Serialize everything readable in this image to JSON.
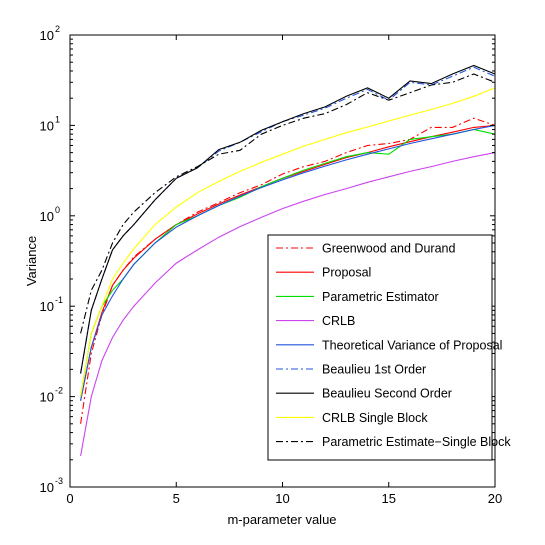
{
  "chart_data": {
    "type": "line",
    "xlabel": "m-parameter value",
    "ylabel": "Variance",
    "xlim": [
      0,
      20
    ],
    "ylim": [
      0.001,
      100
    ],
    "yscale": "log",
    "grid": false,
    "legend_position": "bottom-right",
    "x_ticks": [
      {
        "value": 0,
        "label": "0"
      },
      {
        "value": 5,
        "label": "5"
      },
      {
        "value": 10,
        "label": "10"
      },
      {
        "value": 15,
        "label": "15"
      },
      {
        "value": 20,
        "label": "20"
      }
    ],
    "y_ticks": [
      {
        "value": 0.001,
        "label": "10",
        "exp": "-3"
      },
      {
        "value": 0.01,
        "label": "10",
        "exp": "-2"
      },
      {
        "value": 0.1,
        "label": "10",
        "exp": "-1"
      },
      {
        "value": 1,
        "label": "10",
        "exp": "0"
      },
      {
        "value": 10,
        "label": "10",
        "exp": "1"
      },
      {
        "value": 100,
        "label": "10",
        "exp": "2"
      }
    ],
    "x": [
      0.5,
      1,
      1.5,
      2,
      2.5,
      3,
      4,
      5,
      6,
      7,
      8,
      9,
      10,
      11,
      12,
      13,
      14,
      15,
      16,
      17,
      18,
      19,
      20
    ],
    "series": [
      {
        "name": "Greenwood and Durand",
        "color": "#ff0000",
        "dash": "dashdot",
        "values": [
          0.005,
          0.03,
          0.08,
          0.17,
          0.25,
          0.35,
          0.55,
          0.8,
          1.1,
          1.4,
          1.8,
          2.2,
          2.9,
          3.5,
          4.0,
          5.0,
          6.0,
          6.3,
          7.0,
          9.5,
          9.5,
          12.0,
          10.0
        ]
      },
      {
        "name": "Proposal",
        "color": "#ff0000",
        "dash": "solid",
        "values": [
          0.009,
          0.035,
          0.085,
          0.17,
          0.25,
          0.34,
          0.55,
          0.8,
          1.05,
          1.35,
          1.7,
          2.1,
          2.6,
          3.1,
          3.7,
          4.4,
          5.0,
          5.8,
          6.6,
          7.5,
          8.4,
          9.5,
          10.0
        ]
      },
      {
        "name": "Parametric Estimator",
        "color": "#00dd00",
        "dash": "solid",
        "values": [
          0.01,
          0.05,
          0.1,
          0.15,
          0.2,
          0.29,
          0.5,
          0.8,
          1.0,
          1.3,
          1.6,
          2.1,
          2.6,
          3.2,
          3.8,
          4.5,
          5.0,
          4.8,
          7.0,
          7.5,
          8.0,
          9.0,
          8.0
        ]
      },
      {
        "name": "CRLB",
        "color": "#cc44ee",
        "dash": "solid",
        "values": [
          0.0022,
          0.01,
          0.025,
          0.045,
          0.07,
          0.1,
          0.18,
          0.3,
          0.42,
          0.58,
          0.76,
          0.96,
          1.2,
          1.45,
          1.72,
          2.0,
          2.35,
          2.7,
          3.1,
          3.5,
          4.0,
          4.5,
          5.0
        ]
      },
      {
        "name": "Theoretical Variance of Proposal",
        "color": "#2255dd",
        "dash": "solid",
        "values": [
          0.009,
          0.035,
          0.08,
          0.13,
          0.2,
          0.29,
          0.5,
          0.75,
          1.0,
          1.3,
          1.65,
          2.05,
          2.5,
          3.0,
          3.55,
          4.15,
          4.8,
          5.5,
          6.3,
          7.1,
          8.0,
          9.0,
          10.0
        ]
      },
      {
        "name": "Beaulieu 1st Order",
        "color": "#2255dd",
        "dash": "dashdot",
        "values": [
          0.018,
          0.09,
          0.2,
          0.42,
          0.6,
          0.8,
          1.5,
          2.6,
          3.4,
          5.2,
          6.5,
          8.5,
          11.0,
          13.0,
          15.5,
          20.0,
          25.0,
          19.0,
          30.0,
          28.0,
          35.0,
          44.0,
          35.0
        ]
      },
      {
        "name": "Beaulieu Second Order",
        "color": "#000000",
        "dash": "solid",
        "values": [
          0.018,
          0.09,
          0.2,
          0.42,
          0.6,
          0.8,
          1.5,
          2.6,
          3.4,
          5.4,
          6.5,
          8.8,
          11.0,
          13.5,
          16.0,
          21.0,
          26.0,
          20.0,
          31.0,
          29.0,
          37.0,
          46.0,
          37.0
        ]
      },
      {
        "name": "CRLB Single Block",
        "color": "#ffff00",
        "dash": "solid",
        "values": [
          0.01,
          0.05,
          0.1,
          0.2,
          0.3,
          0.43,
          0.8,
          1.25,
          1.8,
          2.4,
          3.1,
          3.9,
          4.8,
          5.9,
          7.0,
          8.3,
          9.6,
          11.2,
          13.0,
          15.0,
          17.5,
          21.0,
          26.0
        ]
      },
      {
        "name": "Parametric Estimate−Single Block",
        "color": "#000000",
        "dash": "dashdot",
        "values": [
          0.05,
          0.15,
          0.25,
          0.5,
          0.8,
          1.1,
          1.8,
          2.7,
          3.5,
          4.8,
          5.3,
          8.0,
          10.0,
          12.0,
          13.5,
          17.0,
          23.0,
          19.0,
          23.0,
          28.0,
          30.0,
          37.0,
          30.0
        ]
      }
    ]
  }
}
